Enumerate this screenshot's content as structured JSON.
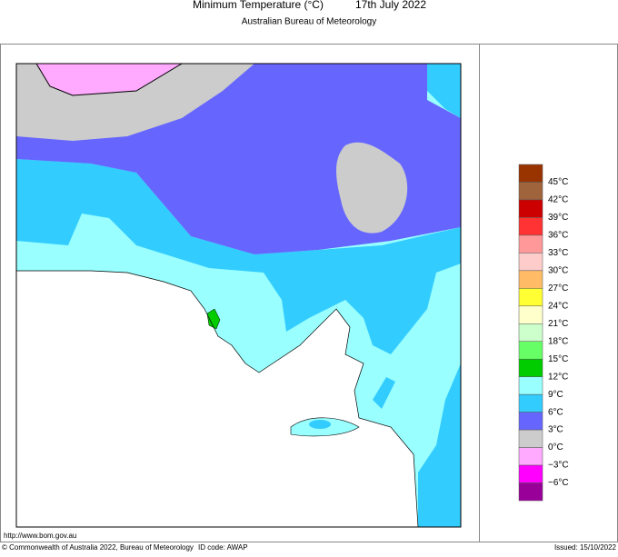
{
  "header": {
    "title": "Minimum Temperature (°C)",
    "date": "17th July 2022",
    "subtitle": "Australian Bureau of Meteorology"
  },
  "legend": {
    "colors": [
      "#993300",
      "#a0643c",
      "#cc0000",
      "#ff3333",
      "#ff9999",
      "#ffcccc",
      "#ffbb66",
      "#ffff33",
      "#ffffcc",
      "#ccffcc",
      "#66ff66",
      "#00cc00",
      "#99ffff",
      "#33ccff",
      "#6666ff",
      "#cccccc",
      "#ffaaff",
      "#ff00ff",
      "#990099"
    ],
    "labels": [
      "45°C",
      "42°C",
      "39°C",
      "36°C",
      "33°C",
      "30°C",
      "27°C",
      "24°C",
      "21°C",
      "18°C",
      "15°C",
      "12°C",
      "9°C",
      "6°C",
      "3°C",
      "0°C",
      "−3°C",
      "−6°C"
    ]
  },
  "footer": {
    "url": "http://www.bom.gov.au",
    "copyright": "© Commonwealth of Australia 2022, Bureau of Meteorology",
    "id_code": "ID code: AWAP",
    "issued": "Issued: 15/10/2022"
  }
}
